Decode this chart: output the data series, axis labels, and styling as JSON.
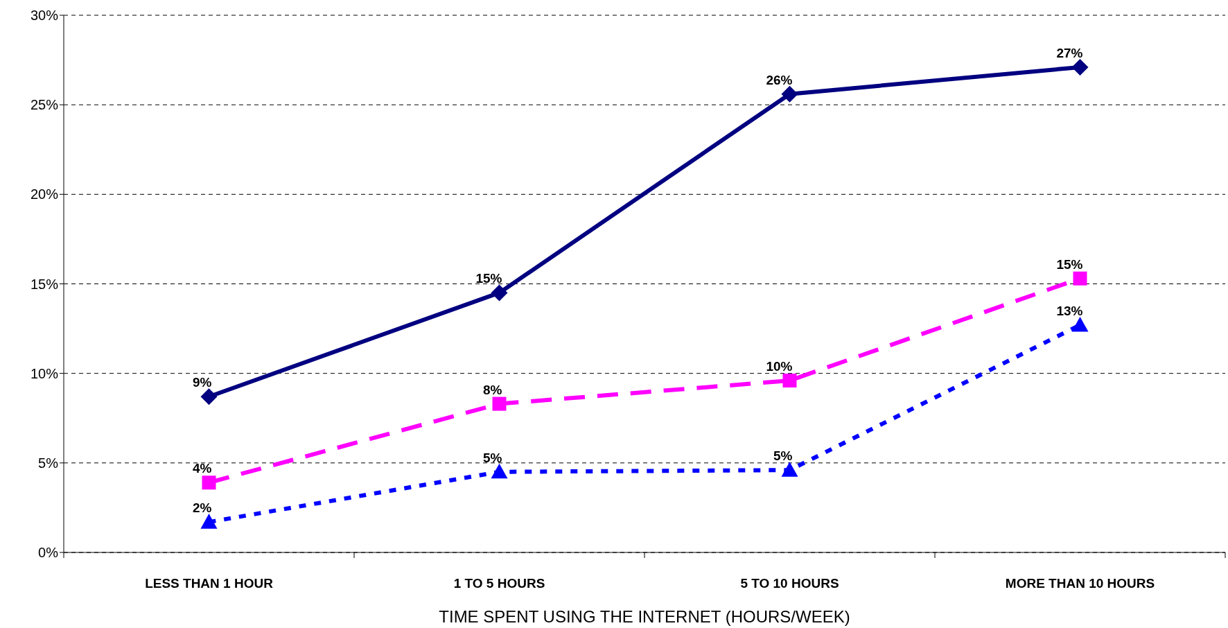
{
  "chart_data": {
    "type": "line",
    "xlabel": "TIME SPENT USING THE INTERNET (HOURS/WEEK)",
    "categories": [
      "LESS THAN 1 HOUR",
      "1 TO 5 HOURS",
      "5 TO 10 HOURS",
      "MORE THAN 10 HOURS"
    ],
    "series": [
      {
        "color": "#000080",
        "marker": "diamond",
        "line_style": "solid",
        "values": [
          8.7,
          14.5,
          25.6,
          27.1
        ],
        "value_labels": [
          "9%",
          "15%",
          "26%",
          "27%"
        ]
      },
      {
        "color": "#ff00ff",
        "marker": "square",
        "line_style": "dashed",
        "values": [
          3.9,
          8.3,
          9.6,
          15.3
        ],
        "value_labels": [
          "4%",
          "8%",
          "10%",
          "15%"
        ]
      },
      {
        "color": "#0000ff",
        "marker": "triangle",
        "line_style": "dotted",
        "values": [
          1.7,
          4.5,
          4.6,
          12.7
        ],
        "value_labels": [
          "2%",
          "5%",
          "5%",
          "13%"
        ]
      }
    ],
    "ylim": [
      0,
      30
    ],
    "yticks": [
      {
        "value": 0,
        "label": "0%"
      },
      {
        "value": 5,
        "label": "5%"
      },
      {
        "value": 10,
        "label": "10%"
      },
      {
        "value": 15,
        "label": "15%"
      },
      {
        "value": 20,
        "label": "20%"
      },
      {
        "value": 25,
        "label": "25%"
      },
      {
        "value": 30,
        "label": "30%"
      }
    ],
    "grid": "y"
  }
}
